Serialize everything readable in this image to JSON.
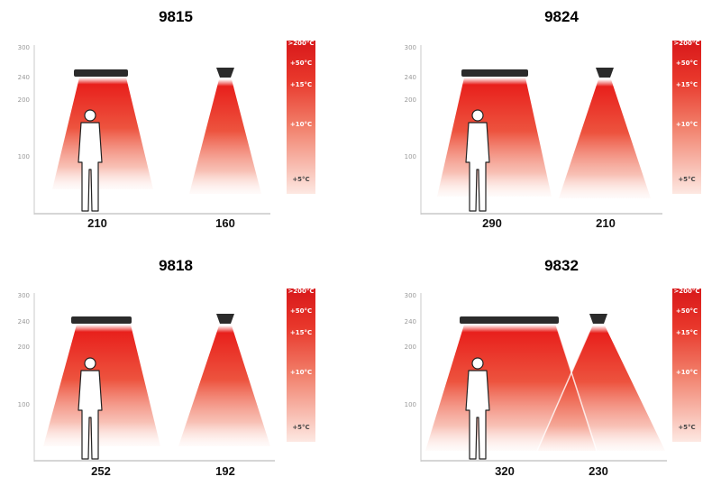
{
  "y_axis_ticks": [
    "300",
    "240",
    "200",
    "100"
  ],
  "temperature_scale": [
    "+5°C",
    "+10°C",
    "+15°C",
    "+50°C",
    ">200°C"
  ],
  "colors": {
    "heat_red": "#e8201c",
    "heat_light": "#fde3dd",
    "heater_body": "#2b2b2b",
    "axis": "#c8c8c8"
  },
  "panels": [
    {
      "model": "9815",
      "heater_a_width": "210",
      "heater_b_width": "160"
    },
    {
      "model": "9824",
      "heater_a_width": "290",
      "heater_b_width": "210"
    },
    {
      "model": "9818",
      "heater_a_width": "252",
      "heater_b_width": "192"
    },
    {
      "model": "9832",
      "heater_a_width": "320",
      "heater_b_width": "230"
    }
  ]
}
